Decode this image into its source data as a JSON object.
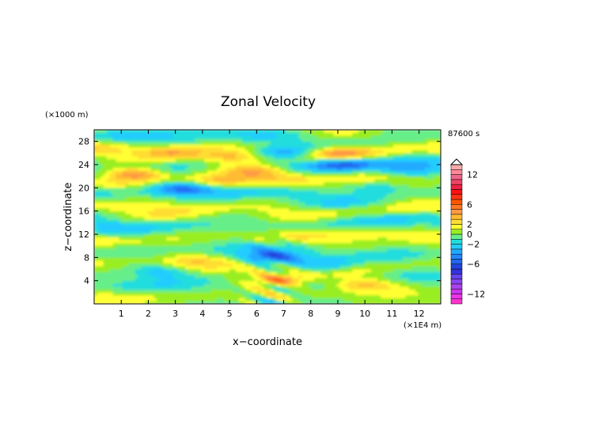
{
  "chart_data": {
    "type": "heatmap",
    "title": "Zonal Velocity",
    "xlabel": "x−coordinate",
    "ylabel": "z−coordinate",
    "x_units": "(×1E4 m)",
    "y_units": "(×1000 m)",
    "time_label": "87600 s",
    "xlim": [
      0,
      12.8
    ],
    "ylim": [
      0,
      30
    ],
    "xticks": [
      "1",
      "2",
      "3",
      "4",
      "5",
      "6",
      "7",
      "8",
      "9",
      "10",
      "11",
      "12"
    ],
    "xtick_values": [
      1,
      2,
      3,
      4,
      5,
      6,
      7,
      8,
      9,
      10,
      11,
      12
    ],
    "yticks": [
      "4",
      "8",
      "12",
      "16",
      "20",
      "24",
      "28"
    ],
    "ytick_values": [
      4,
      8,
      12,
      16,
      20,
      24,
      28
    ],
    "grid": false,
    "colorbar": {
      "position": "right",
      "min": -14,
      "max": 14,
      "labels": [
        "12",
        "6",
        "2",
        "0",
        "−2",
        "−6",
        "−12"
      ],
      "label_values": [
        12,
        6,
        2,
        0,
        -2,
        -6,
        -12
      ],
      "levels": [
        -14,
        -13,
        -12,
        -11,
        -10,
        -9,
        -8,
        -7,
        -6,
        -5,
        -4,
        -3,
        -2,
        -1,
        0,
        1,
        2,
        3,
        4,
        5,
        6,
        7,
        8,
        9,
        10,
        11,
        12,
        13,
        14
      ],
      "colors": [
        "#ff33cc",
        "#ee33ee",
        "#cc33ee",
        "#aa44ee",
        "#8844ee",
        "#6644ee",
        "#3333dd",
        "#2244dd",
        "#2266ee",
        "#2288ff",
        "#22aaff",
        "#22ccff",
        "#22dddd",
        "#66ee88",
        "#99ee22",
        "#ffff33",
        "#ffdd33",
        "#ffbb33",
        "#ff9944",
        "#ff7722",
        "#ff5500",
        "#ff3311",
        "#ff1111",
        "#ee2244",
        "#ee4466",
        "#ee6688",
        "#ff8899",
        "#ffaaaa"
      ]
    },
    "features": [
      {
        "x": 1.5,
        "z": 22.5,
        "value": 6
      },
      {
        "x": 2.8,
        "z": 26.2,
        "value": 3
      },
      {
        "x": 3.2,
        "z": 20.0,
        "value": -4
      },
      {
        "x": 5.2,
        "z": 25.4,
        "value": 3
      },
      {
        "x": 6.0,
        "z": 23.0,
        "value": 3
      },
      {
        "x": 7.0,
        "z": 26.2,
        "value": -3
      },
      {
        "x": 9.0,
        "z": 26.0,
        "value": 4
      },
      {
        "x": 9.2,
        "z": 24.0,
        "value": -4
      },
      {
        "x": 11.5,
        "z": 23.0,
        "value": -3
      },
      {
        "x": 4.5,
        "z": 21.0,
        "value": 3
      },
      {
        "x": 10.5,
        "z": 20.0,
        "value": -3
      },
      {
        "x": 6.5,
        "z": 8.0,
        "value": -5
      },
      {
        "x": 6.8,
        "z": 4.0,
        "value": 5
      },
      {
        "x": 10.0,
        "z": 3.5,
        "value": 3
      },
      {
        "x": 8.5,
        "z": 6.5,
        "value": -3
      },
      {
        "x": 2.5,
        "z": 5.5,
        "value": -3
      },
      {
        "x": 3.5,
        "z": 7.5,
        "value": 2
      }
    ]
  }
}
